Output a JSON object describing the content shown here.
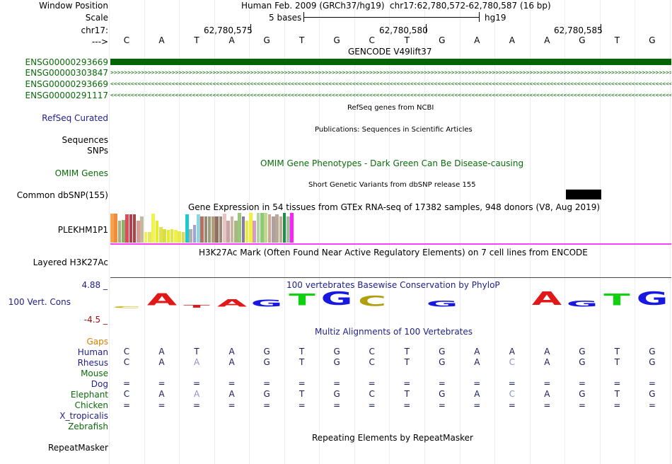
{
  "labels": {
    "window_position": "Window Position",
    "scale": "Scale",
    "chrom": "chr17:",
    "arrow": "--->",
    "gene1": "ENSG00000293669",
    "gene2": "ENSG00000303847",
    "gene3": "ENSG00000293669",
    "gene4": "ENSG00000291117",
    "refseq": "RefSeq Curated",
    "sequences": "Sequences",
    "snps": "SNPs",
    "omim": "OMIM Genes",
    "dbsnp": "Common dbSNP(155)",
    "plekhm1p1": "PLEKHM1P1",
    "h3k27ac": "Layered H3K27Ac",
    "cons_max": "4.88 _",
    "cons": "100 Vert. Cons",
    "cons_min": "-4.5 _",
    "gaps": "Gaps",
    "species": [
      "Human",
      "Rhesus",
      "Mouse",
      "Dog",
      "Elephant",
      "Chicken",
      "X_tropicalis",
      "Zebrafish"
    ],
    "repeatmasker": "RepeatMasker"
  },
  "header": {
    "assembly": "Human Feb. 2009 (GRCh37/hg19)",
    "position": "chr17:62,780,572-62,780,587 (16 bp)",
    "scale_text": "5 bases",
    "scale_db": "hg19",
    "ticks": [
      "62,780,575",
      "62,780,580",
      "62,780,585"
    ]
  },
  "sequence": [
    "C",
    "A",
    "T",
    "A",
    "G",
    "T",
    "G",
    "C",
    "T",
    "G",
    "A",
    "A",
    "A",
    "G",
    "T",
    "G"
  ],
  "tracks": {
    "gencode": "GENCODE V49lift37",
    "refseq": "RefSeq genes from NCBI",
    "publications": "Publications: Sequences in Scientific Articles",
    "omim": "OMIM Gene Phenotypes - Dark Green Can Be Disease-causing",
    "dbsnp": "Short Genetic Variants from dbSNP release 155",
    "gtex": "Gene Expression in 54 tissues from GTEx RNA-seq of 17382 samples, 948 donors (V8, Aug 2019)",
    "h3k27ac": "H3K27Ac Mark (Often Found Near Active Regulatory Elements) on 7 cell lines from ENCODE",
    "phylop": "100 vertebrates Basewise Conservation by PhyloP",
    "multiz": "Multiz Alignments of 100 Vertebrates",
    "repeatmasker": "Repeating Elements by RepeatMasker"
  },
  "gtex_bars": [
    {
      "color": "#f6a44c",
      "v": 0.95
    },
    {
      "color": "#f08c3c",
      "v": 0.95
    },
    {
      "color": "#a8b27a",
      "v": 0.72
    },
    {
      "color": "#8fb06c",
      "v": 0.75
    },
    {
      "color": "#e0495a",
      "v": 0.92
    },
    {
      "color": "#c23a4a",
      "v": 0.92
    },
    {
      "color": "#a04848",
      "v": 0.92
    },
    {
      "color": "#d89a9a",
      "v": 0.72
    },
    {
      "color": "#c8b89a",
      "v": 0.85
    },
    {
      "color": "#f0f060",
      "v": 0.35
    },
    {
      "color": "#e8e860",
      "v": 0.35
    },
    {
      "color": "#f2f24a",
      "v": 0.95
    },
    {
      "color": "#e5ec2c",
      "v": 0.72
    },
    {
      "color": "#e0e050",
      "v": 0.5
    },
    {
      "color": "#d8e03c",
      "v": 0.45
    },
    {
      "color": "#e5ec30",
      "v": 0.42
    },
    {
      "color": "#e0e83a",
      "v": 0.45
    },
    {
      "color": "#f0f046",
      "v": 0.42
    },
    {
      "color": "#e8e850",
      "v": 0.38
    },
    {
      "color": "#d8e048",
      "v": 0.36
    },
    {
      "color": "#20c8d0",
      "v": 0.92
    },
    {
      "color": "#b0b0b0",
      "v": 0.45
    },
    {
      "color": "#a0a0e0",
      "v": 0.58
    },
    {
      "color": "#8cd8e0",
      "v": 0.92
    },
    {
      "color": "#b87060",
      "v": 0.85
    },
    {
      "color": "#a08870",
      "v": 0.85
    },
    {
      "color": "#98a080",
      "v": 0.85
    },
    {
      "color": "#b49c7c",
      "v": 0.85
    },
    {
      "color": "#907060",
      "v": 0.85
    },
    {
      "color": "#9c8874",
      "v": 0.85
    },
    {
      "color": "#e8c4c4",
      "v": 0.95
    },
    {
      "color": "#caa4a4",
      "v": 0.72
    },
    {
      "color": "#d0b4a0",
      "v": 0.85
    },
    {
      "color": "#a8b880",
      "v": 0.72
    },
    {
      "color": "#98c878",
      "v": 0.98
    },
    {
      "color": "#8a7aa0",
      "v": 0.85
    },
    {
      "color": "#ecec3c",
      "v": 0.72
    },
    {
      "color": "#f0f040",
      "v": 0.98
    },
    {
      "color": "#d898c8",
      "v": 0.72
    },
    {
      "color": "#a8d8a0",
      "v": 0.98
    },
    {
      "color": "#90c878",
      "v": 0.98
    },
    {
      "color": "#c0d890",
      "v": 0.98
    },
    {
      "color": "#d0a890",
      "v": 0.92
    },
    {
      "color": "#b0a0a0",
      "v": 0.85
    },
    {
      "color": "#b8a898",
      "v": 0.92
    },
    {
      "color": "#c0b090",
      "v": 0.85
    },
    {
      "color": "#1e8c4c",
      "v": 0.98
    },
    {
      "color": "#a0c0a0",
      "v": 0.85
    },
    {
      "color": "#ff20ff",
      "v": 0.98
    }
  ],
  "phylop_letters": [
    {
      "b": "C",
      "s": 0.12,
      "color": "#c8b400"
    },
    {
      "b": "A",
      "s": 0.9,
      "color": "#e01818"
    },
    {
      "b": "T",
      "s": 0.2,
      "color": "#e01818"
    },
    {
      "b": "A",
      "s": 0.55,
      "color": "#e01818"
    },
    {
      "b": "G",
      "s": 0.5,
      "color": "#1818e0"
    },
    {
      "b": "T",
      "s": 0.85,
      "color": "#10d010"
    },
    {
      "b": "G",
      "s": 1.0,
      "color": "#1818e0"
    },
    {
      "b": "C",
      "s": 0.75,
      "color": "#b0a010"
    },
    {
      "b": "T",
      "s": 0.0,
      "color": "#10d010"
    },
    {
      "b": "G",
      "s": 0.45,
      "color": "#1818e0"
    },
    {
      "b": "A",
      "s": 0.0,
      "color": "#e01818"
    },
    {
      "b": "A",
      "s": 0.0,
      "color": "#e01818"
    },
    {
      "b": "A",
      "s": 1.0,
      "color": "#e01818"
    },
    {
      "b": "G",
      "s": 0.45,
      "color": "#1818e0"
    },
    {
      "b": "T",
      "s": 0.85,
      "color": "#10d010"
    },
    {
      "b": "G",
      "s": 1.0,
      "color": "#1818e0"
    }
  ],
  "alignments": {
    "human": [
      "C",
      "A",
      "T",
      "A",
      "G",
      "T",
      "G",
      "C",
      "T",
      "G",
      "A",
      "A",
      "A",
      "G",
      "T",
      "G"
    ],
    "rhesus": [
      "C",
      "A",
      "A",
      "A",
      "G",
      "T",
      "G",
      "C",
      "T",
      "G",
      "A",
      "C",
      "A",
      "G",
      "T",
      "G"
    ],
    "dog": [
      "=",
      "=",
      "=",
      "=",
      "=",
      "=",
      "=",
      "=",
      "=",
      "=",
      "=",
      "=",
      "=",
      "=",
      "=",
      "="
    ],
    "elephant": [
      "C",
      "A",
      "A",
      "A",
      "G",
      "T",
      "G",
      "C",
      "T",
      "G",
      "A",
      "C",
      "A",
      "G",
      "T",
      "G"
    ],
    "chicken": [
      "=",
      "=",
      "=",
      "=",
      "=",
      "=",
      "=",
      "=",
      "=",
      "=",
      "=",
      "=",
      "=",
      "=",
      "=",
      "="
    ]
  },
  "colors": {
    "label_green": "#0a6b0a",
    "label_navy": "#1f1f88",
    "gencode_bar": "#006400",
    "mismatch": "#9090c8"
  }
}
